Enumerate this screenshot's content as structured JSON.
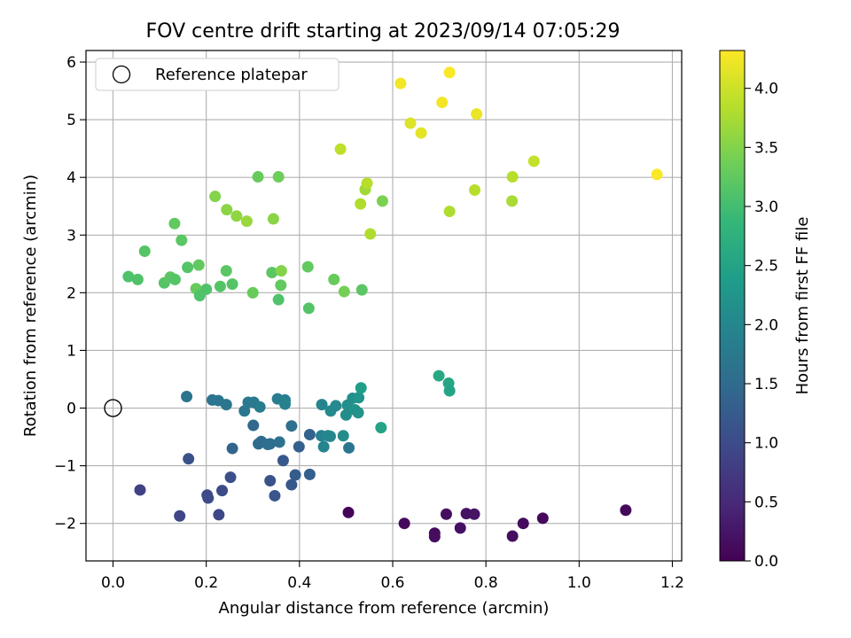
{
  "chart_data": {
    "type": "scatter",
    "title": "FOV centre drift starting at 2023/09/14 07:05:29",
    "xlabel": "Angular distance from reference (arcmin)",
    "ylabel": "Rotation from reference (arcmin)",
    "xlim": [
      -0.058,
      1.22
    ],
    "ylim": [
      -2.65,
      6.2
    ],
    "xticks": [
      0.0,
      0.2,
      0.4,
      0.6,
      0.8,
      1.0,
      1.2
    ],
    "xtick_labels": [
      "0.0",
      "0.2",
      "0.4",
      "0.6",
      "0.8",
      "1.0",
      "1.2"
    ],
    "yticks": [
      -2,
      -1,
      0,
      1,
      2,
      3,
      4,
      5,
      6
    ],
    "ytick_labels": [
      "−2",
      "−1",
      "0",
      "1",
      "2",
      "3",
      "4",
      "5",
      "6"
    ],
    "grid": true,
    "legend": {
      "position": "top-left",
      "entries": [
        "Reference platepar"
      ]
    },
    "reference_point": {
      "x": 0.0,
      "y": 0.0
    },
    "colorbar": {
      "label": "Hours from first FF file",
      "range": [
        0.0,
        4.32
      ],
      "ticks": [
        0.0,
        0.5,
        1.0,
        1.5,
        2.0,
        2.5,
        3.0,
        3.5,
        4.0
      ],
      "tick_labels": [
        "0.0",
        "0.5",
        "1.0",
        "1.5",
        "2.0",
        "2.5",
        "3.0",
        "3.5",
        "4.0"
      ],
      "colormap": "viridis",
      "colormap_stops": [
        "#440154",
        "#482878",
        "#3e4989",
        "#31688e",
        "#26828e",
        "#1f9e89",
        "#35b779",
        "#6ece58",
        "#b5de2b",
        "#fde725"
      ]
    },
    "points": [
      {
        "x": 0.505,
        "y": -1.81,
        "t": 0.05
      },
      {
        "x": 0.625,
        "y": -2.0,
        "t": 0.1
      },
      {
        "x": 0.69,
        "y": -2.17,
        "t": 0.12
      },
      {
        "x": 0.69,
        "y": -2.23,
        "t": 0.14
      },
      {
        "x": 0.715,
        "y": -1.84,
        "t": 0.16
      },
      {
        "x": 0.745,
        "y": -2.08,
        "t": 0.18
      },
      {
        "x": 0.758,
        "y": -1.83,
        "t": 0.2
      },
      {
        "x": 0.775,
        "y": -1.84,
        "t": 0.22
      },
      {
        "x": 0.857,
        "y": -2.22,
        "t": 0.15
      },
      {
        "x": 0.88,
        "y": -2.0,
        "t": 0.12
      },
      {
        "x": 0.922,
        "y": -1.91,
        "t": 0.08
      },
      {
        "x": 1.1,
        "y": -1.77,
        "t": 0.1
      },
      {
        "x": 0.058,
        "y": -1.42,
        "t": 0.85
      },
      {
        "x": 0.143,
        "y": -1.87,
        "t": 0.9
      },
      {
        "x": 0.202,
        "y": -1.51,
        "t": 0.95
      },
      {
        "x": 0.204,
        "y": -1.56,
        "t": 1.0
      },
      {
        "x": 0.227,
        "y": -1.85,
        "t": 0.95
      },
      {
        "x": 0.234,
        "y": -1.43,
        "t": 1.0
      },
      {
        "x": 0.252,
        "y": -1.2,
        "t": 1.05
      },
      {
        "x": 0.162,
        "y": -0.88,
        "t": 1.1
      },
      {
        "x": 0.337,
        "y": -1.26,
        "t": 1.1
      },
      {
        "x": 0.347,
        "y": -1.52,
        "t": 1.15
      },
      {
        "x": 0.365,
        "y": -0.91,
        "t": 1.2
      },
      {
        "x": 0.383,
        "y": -1.33,
        "t": 1.2
      },
      {
        "x": 0.391,
        "y": -1.16,
        "t": 1.25
      },
      {
        "x": 0.399,
        "y": -0.67,
        "t": 1.3
      },
      {
        "x": 0.422,
        "y": -1.15,
        "t": 1.3
      },
      {
        "x": 0.422,
        "y": -0.46,
        "t": 1.35
      },
      {
        "x": 0.256,
        "y": -0.7,
        "t": 1.4
      },
      {
        "x": 0.301,
        "y": -0.3,
        "t": 1.45
      },
      {
        "x": 0.312,
        "y": -0.62,
        "t": 1.5
      },
      {
        "x": 0.318,
        "y": -0.58,
        "t": 1.5
      },
      {
        "x": 0.332,
        "y": -0.63,
        "t": 1.55
      },
      {
        "x": 0.337,
        "y": -0.62,
        "t": 1.55
      },
      {
        "x": 0.357,
        "y": -0.59,
        "t": 1.6
      },
      {
        "x": 0.383,
        "y": -0.31,
        "t": 1.6
      },
      {
        "x": 0.158,
        "y": 0.2,
        "t": 1.65
      },
      {
        "x": 0.213,
        "y": 0.14,
        "t": 1.65
      },
      {
        "x": 0.226,
        "y": 0.13,
        "t": 1.7
      },
      {
        "x": 0.243,
        "y": 0.06,
        "t": 1.7
      },
      {
        "x": 0.282,
        "y": -0.05,
        "t": 1.7
      },
      {
        "x": 0.29,
        "y": 0.1,
        "t": 1.75
      },
      {
        "x": 0.302,
        "y": 0.1,
        "t": 1.75
      },
      {
        "x": 0.315,
        "y": 0.02,
        "t": 1.8
      },
      {
        "x": 0.353,
        "y": 0.16,
        "t": 1.85
      },
      {
        "x": 0.369,
        "y": 0.14,
        "t": 1.85
      },
      {
        "x": 0.369,
        "y": 0.07,
        "t": 1.9
      },
      {
        "x": 0.447,
        "y": -0.48,
        "t": 1.9
      },
      {
        "x": 0.448,
        "y": 0.06,
        "t": 1.95
      },
      {
        "x": 0.452,
        "y": -0.67,
        "t": 1.95
      },
      {
        "x": 0.461,
        "y": -0.48,
        "t": 2.0
      },
      {
        "x": 0.466,
        "y": -0.49,
        "t": 2.0
      },
      {
        "x": 0.467,
        "y": -0.05,
        "t": 2.05
      },
      {
        "x": 0.478,
        "y": 0.04,
        "t": 2.05
      },
      {
        "x": 0.494,
        "y": -0.48,
        "t": 2.1
      },
      {
        "x": 0.5,
        "y": -0.12,
        "t": 2.1
      },
      {
        "x": 0.503,
        "y": 0.05,
        "t": 2.15
      },
      {
        "x": 0.506,
        "y": -0.69,
        "t": 1.7
      },
      {
        "x": 0.514,
        "y": 0.17,
        "t": 2.15
      },
      {
        "x": 0.519,
        "y": -0.03,
        "t": 2.2
      },
      {
        "x": 0.526,
        "y": -0.08,
        "t": 2.2
      },
      {
        "x": 0.527,
        "y": 0.18,
        "t": 2.25
      },
      {
        "x": 0.532,
        "y": 0.35,
        "t": 2.4
      },
      {
        "x": 0.575,
        "y": -0.34,
        "t": 2.5
      },
      {
        "x": 0.699,
        "y": 0.56,
        "t": 2.6
      },
      {
        "x": 0.72,
        "y": 0.43,
        "t": 2.55
      },
      {
        "x": 0.722,
        "y": 0.3,
        "t": 2.5
      },
      {
        "x": 0.033,
        "y": 2.28,
        "t": 3.1
      },
      {
        "x": 0.053,
        "y": 2.23,
        "t": 3.1
      },
      {
        "x": 0.068,
        "y": 2.72,
        "t": 3.15
      },
      {
        "x": 0.11,
        "y": 2.17,
        "t": 3.15
      },
      {
        "x": 0.123,
        "y": 2.27,
        "t": 3.2
      },
      {
        "x": 0.132,
        "y": 3.2,
        "t": 3.25
      },
      {
        "x": 0.133,
        "y": 2.23,
        "t": 3.15
      },
      {
        "x": 0.147,
        "y": 2.91,
        "t": 3.2
      },
      {
        "x": 0.16,
        "y": 2.44,
        "t": 3.15
      },
      {
        "x": 0.178,
        "y": 2.07,
        "t": 3.3
      },
      {
        "x": 0.184,
        "y": 2.48,
        "t": 3.25
      },
      {
        "x": 0.186,
        "y": 1.95,
        "t": 3.1
      },
      {
        "x": 0.2,
        "y": 2.06,
        "t": 3.1
      },
      {
        "x": 0.23,
        "y": 2.11,
        "t": 3.15
      },
      {
        "x": 0.243,
        "y": 2.38,
        "t": 3.2
      },
      {
        "x": 0.256,
        "y": 2.15,
        "t": 3.15
      },
      {
        "x": 0.3,
        "y": 2.0,
        "t": 3.3
      },
      {
        "x": 0.311,
        "y": 4.01,
        "t": 3.3
      },
      {
        "x": 0.341,
        "y": 2.35,
        "t": 3.2
      },
      {
        "x": 0.355,
        "y": 1.88,
        "t": 3.1
      },
      {
        "x": 0.355,
        "y": 4.01,
        "t": 3.35
      },
      {
        "x": 0.36,
        "y": 2.13,
        "t": 3.25
      },
      {
        "x": 0.361,
        "y": 2.38,
        "t": 3.5
      },
      {
        "x": 0.418,
        "y": 2.45,
        "t": 3.25
      },
      {
        "x": 0.42,
        "y": 1.73,
        "t": 3.15
      },
      {
        "x": 0.474,
        "y": 2.23,
        "t": 3.3
      },
      {
        "x": 0.496,
        "y": 2.02,
        "t": 3.4
      },
      {
        "x": 0.534,
        "y": 2.05,
        "t": 3.2
      },
      {
        "x": 0.219,
        "y": 3.67,
        "t": 3.5
      },
      {
        "x": 0.244,
        "y": 3.44,
        "t": 3.55
      },
      {
        "x": 0.265,
        "y": 3.33,
        "t": 3.6
      },
      {
        "x": 0.287,
        "y": 3.24,
        "t": 3.65
      },
      {
        "x": 0.344,
        "y": 3.28,
        "t": 3.55
      },
      {
        "x": 0.488,
        "y": 4.49,
        "t": 3.9
      },
      {
        "x": 0.531,
        "y": 3.54,
        "t": 3.8
      },
      {
        "x": 0.541,
        "y": 3.79,
        "t": 3.7
      },
      {
        "x": 0.545,
        "y": 3.9,
        "t": 3.85
      },
      {
        "x": 0.552,
        "y": 3.02,
        "t": 3.8
      },
      {
        "x": 0.578,
        "y": 3.59,
        "t": 3.45
      },
      {
        "x": 0.617,
        "y": 5.63,
        "t": 4.25
      },
      {
        "x": 0.638,
        "y": 4.94,
        "t": 4.1
      },
      {
        "x": 0.661,
        "y": 4.77,
        "t": 4.15
      },
      {
        "x": 0.706,
        "y": 5.3,
        "t": 4.25
      },
      {
        "x": 0.722,
        "y": 5.82,
        "t": 4.3
      },
      {
        "x": 0.722,
        "y": 3.41,
        "t": 3.8
      },
      {
        "x": 0.776,
        "y": 3.78,
        "t": 3.85
      },
      {
        "x": 0.78,
        "y": 5.1,
        "t": 4.2
      },
      {
        "x": 0.857,
        "y": 4.01,
        "t": 3.85
      },
      {
        "x": 0.856,
        "y": 3.59,
        "t": 3.75
      },
      {
        "x": 0.903,
        "y": 4.28,
        "t": 3.95
      },
      {
        "x": 1.167,
        "y": 4.05,
        "t": 4.3
      }
    ]
  }
}
